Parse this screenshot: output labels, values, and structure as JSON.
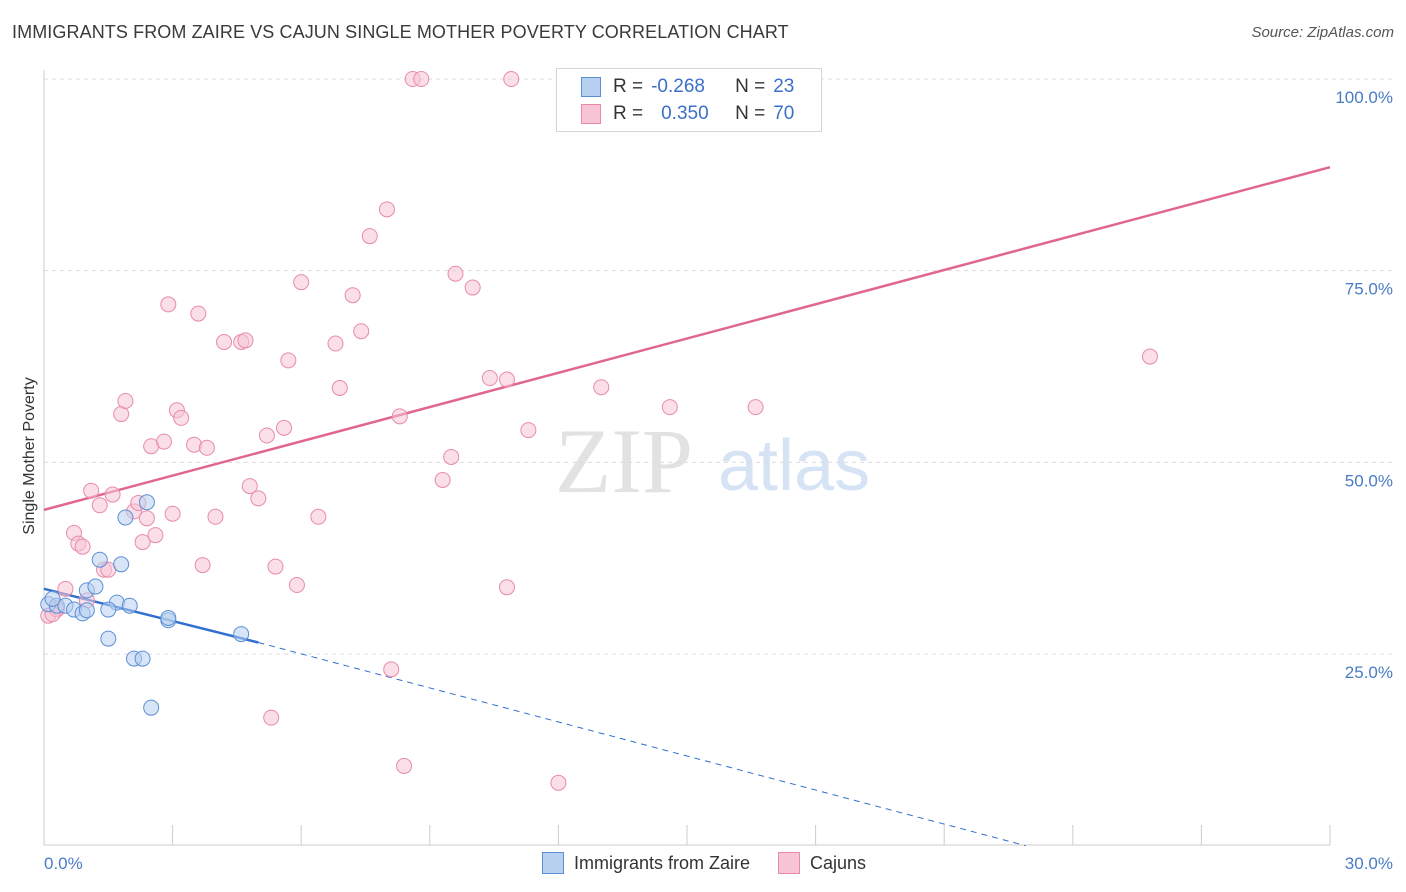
{
  "title": "IMMIGRANTS FROM ZAIRE VS CAJUN SINGLE MOTHER POVERTY CORRELATION CHART",
  "source": "Source: ZipAtlas.com",
  "watermark": {
    "zip": "ZIP",
    "atlas": "atlas"
  },
  "colors": {
    "blue_fill": "#b8d0f0",
    "blue_stroke": "#5b8fd6",
    "blue_line": "#3070d0",
    "pink_fill": "#f8c5d6",
    "pink_stroke": "#e88aab",
    "pink_line": "#e0668f",
    "grid": "#dcdcdc",
    "tick_text": "#4a7cc4"
  },
  "legend": {
    "rows": [
      {
        "r_label": "R =",
        "r_value": "-0.268",
        "n_label": "N =",
        "n_value": "23"
      },
      {
        "r_label": "R =",
        "r_value": "0.350",
        "n_label": "N =",
        "n_value": "70"
      }
    ]
  },
  "chart_data": {
    "type": "scatter",
    "title": "IMMIGRANTS FROM ZAIRE VS CAJUN SINGLE MOTHER POVERTY CORRELATION CHART",
    "xlabel": "",
    "ylabel": "Single Mother Poverty",
    "xlim": [
      0,
      30
    ],
    "ylim": [
      0,
      100
    ],
    "x_tick_labels": [
      "0.0%",
      "30.0%"
    ],
    "y_ticks": [
      25,
      50,
      75,
      100
    ],
    "y_tick_labels": [
      "25.0%",
      "50.0%",
      "75.0%",
      "100.0%"
    ],
    "legend_position": "bottom-center",
    "series": [
      {
        "name": "Immigrants from Zaire",
        "color": "#5b8fd6",
        "r": -0.268,
        "n": 23,
        "trend": {
          "x0": 0,
          "y0": 33.5,
          "x1": 5.0,
          "y1": 26.5,
          "dash_to_x": 22.9,
          "dash_to_y": 0
        },
        "points": [
          [
            0.1,
            31.5
          ],
          [
            0.3,
            31.3
          ],
          [
            0.5,
            31.3
          ],
          [
            0.7,
            30.8
          ],
          [
            1.0,
            33.3
          ],
          [
            1.2,
            33.8
          ],
          [
            0.9,
            30.3
          ],
          [
            1.0,
            30.7
          ],
          [
            1.7,
            31.7
          ],
          [
            1.3,
            37.3
          ],
          [
            1.8,
            36.7
          ],
          [
            1.5,
            30.8
          ],
          [
            2.0,
            31.3
          ],
          [
            1.9,
            42.8
          ],
          [
            2.4,
            44.8
          ],
          [
            2.9,
            29.4
          ],
          [
            2.9,
            29.7
          ],
          [
            1.5,
            27.0
          ],
          [
            2.1,
            24.4
          ],
          [
            2.3,
            24.4
          ],
          [
            2.5,
            18.0
          ],
          [
            4.6,
            27.6
          ],
          [
            0.2,
            32.2
          ]
        ]
      },
      {
        "name": "Cajuns",
        "color": "#e88aab",
        "r": 0.35,
        "n": 70,
        "trend": {
          "x0": 0,
          "y0": 43.8,
          "x1": 30.0,
          "y1": 88.5
        },
        "points": [
          [
            0.1,
            30.0
          ],
          [
            0.3,
            31.0
          ],
          [
            0.5,
            33.5
          ],
          [
            0.7,
            40.8
          ],
          [
            0.8,
            39.4
          ],
          [
            0.9,
            39.0
          ],
          [
            1.0,
            32.0
          ],
          [
            1.1,
            46.3
          ],
          [
            1.3,
            44.4
          ],
          [
            1.4,
            36.0
          ],
          [
            1.5,
            36.0
          ],
          [
            1.6,
            45.8
          ],
          [
            1.8,
            56.3
          ],
          [
            1.9,
            58.0
          ],
          [
            2.1,
            43.6
          ],
          [
            2.2,
            44.7
          ],
          [
            2.3,
            39.6
          ],
          [
            2.4,
            42.7
          ],
          [
            2.5,
            52.1
          ],
          [
            2.6,
            40.5
          ],
          [
            2.8,
            52.7
          ],
          [
            2.9,
            70.6
          ],
          [
            3.0,
            43.3
          ],
          [
            3.1,
            56.8
          ],
          [
            3.2,
            55.8
          ],
          [
            3.5,
            52.3
          ],
          [
            3.6,
            69.4
          ],
          [
            3.7,
            36.6
          ],
          [
            3.8,
            51.9
          ],
          [
            4.0,
            42.9
          ],
          [
            4.2,
            65.7
          ],
          [
            4.6,
            65.7
          ],
          [
            4.7,
            65.9
          ],
          [
            4.8,
            46.9
          ],
          [
            5.0,
            45.3
          ],
          [
            5.2,
            53.5
          ],
          [
            5.4,
            36.4
          ],
          [
            5.6,
            54.5
          ],
          [
            5.7,
            63.3
          ],
          [
            5.9,
            34.0
          ],
          [
            6.0,
            73.5
          ],
          [
            6.4,
            42.9
          ],
          [
            6.8,
            65.5
          ],
          [
            6.9,
            59.7
          ],
          [
            7.2,
            71.8
          ],
          [
            7.4,
            67.1
          ],
          [
            7.6,
            79.5
          ],
          [
            8.0,
            83.0
          ],
          [
            8.3,
            56.0
          ],
          [
            8.6,
            100.0
          ],
          [
            8.8,
            100.0
          ],
          [
            9.3,
            47.7
          ],
          [
            9.5,
            50.7
          ],
          [
            9.6,
            74.6
          ],
          [
            10.0,
            72.8
          ],
          [
            10.4,
            61.0
          ],
          [
            10.8,
            60.8
          ],
          [
            10.9,
            100.0
          ],
          [
            11.3,
            54.2
          ],
          [
            13.0,
            59.8
          ],
          [
            14.6,
            57.2
          ],
          [
            16.6,
            57.2
          ],
          [
            25.8,
            63.8
          ],
          [
            8.1,
            23.0
          ],
          [
            5.3,
            16.7
          ],
          [
            8.4,
            10.4
          ],
          [
            12.0,
            8.2
          ],
          [
            10.8,
            33.7
          ],
          [
            0.3,
            30.8
          ],
          [
            0.2,
            30.2
          ]
        ]
      }
    ]
  },
  "bottom_legend": [
    {
      "label": "Immigrants from Zaire"
    },
    {
      "label": "Cajuns"
    }
  ]
}
